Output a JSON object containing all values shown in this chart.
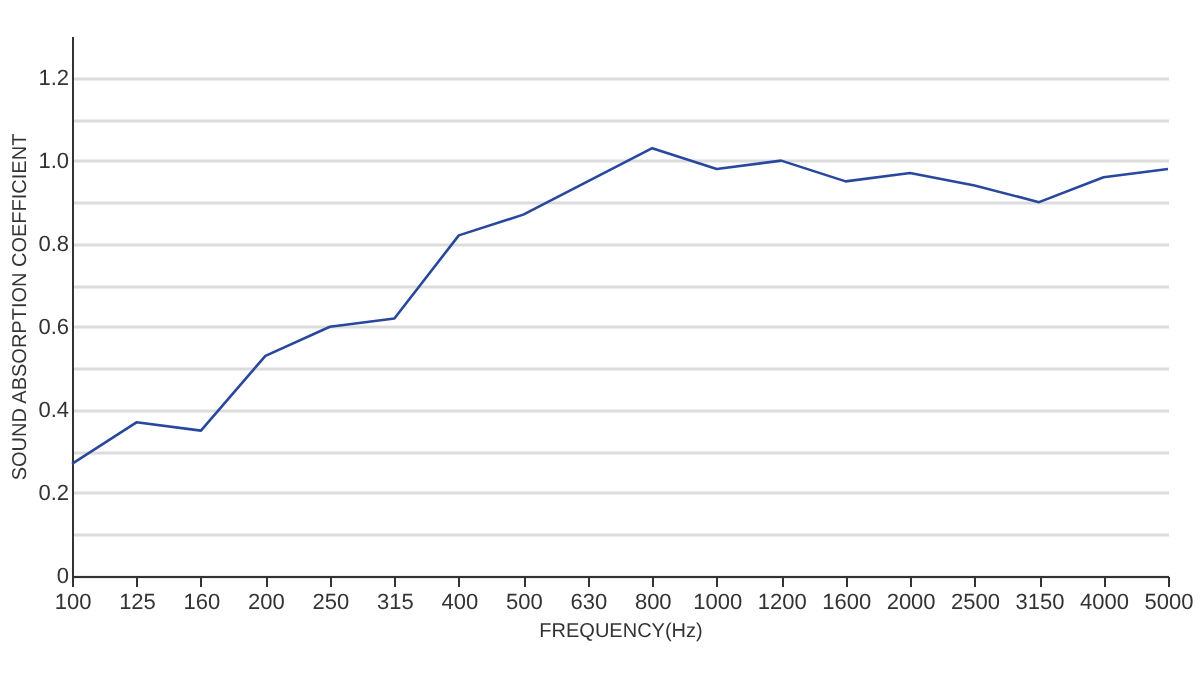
{
  "chart_data": {
    "type": "line",
    "xlabel": "FREQUENCY(Hz)",
    "ylabel": "SOUND ABSORPTION COEFFICIENT",
    "categories": [
      "100",
      "125",
      "160",
      "200",
      "250",
      "315",
      "400",
      "500",
      "630",
      "800",
      "1000",
      "1200",
      "1600",
      "2000",
      "2500",
      "3150",
      "4000",
      "5000"
    ],
    "series": [
      {
        "color": "#2a479e",
        "values": [
          0.27,
          0.37,
          0.35,
          0.53,
          0.6,
          0.62,
          0.82,
          0.87,
          0.95,
          1.03,
          0.98,
          1.0,
          0.95,
          0.97,
          0.94,
          0.9,
          0.96,
          0.98
        ]
      }
    ],
    "ylim": [
      0,
      1.3
    ],
    "yticks": [
      0,
      {
        "value": 0.1,
        "label": null
      },
      0.2,
      {
        "value": 0.3,
        "label": null
      },
      0.4,
      {
        "value": 0.5,
        "label": null
      },
      0.6,
      {
        "value": 0.7,
        "label": null
      },
      0.8,
      {
        "value": 0.9,
        "label": null
      },
      {
        "value": 1.0,
        "label": "1.0"
      },
      {
        "value": 1.1,
        "label": null
      },
      1.2
    ],
    "grid": "y",
    "marker": "none",
    "line_style": "solid"
  }
}
